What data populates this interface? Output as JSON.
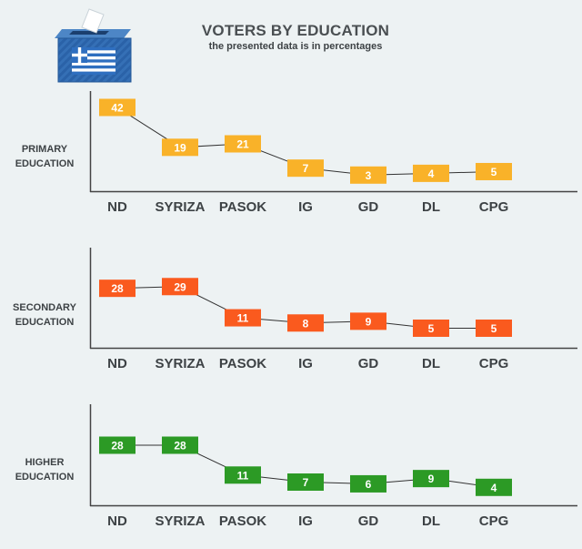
{
  "header": {
    "title": "VOTERS BY EDUCATION",
    "subtitle": "the presented data is in percentages"
  },
  "icon": "greek-ballot-box-icon",
  "chart_data": [
    {
      "type": "line",
      "panel_label": "PRIMARY EDUCATION",
      "categories": [
        "ND",
        "SYRIZA",
        "PASOK",
        "IG",
        "GD",
        "DL",
        "CPG"
      ],
      "values": [
        42,
        19,
        21,
        7,
        3,
        4,
        5
      ],
      "color": "#f9b229"
    },
    {
      "type": "line",
      "panel_label": "SECONDARY EDUCATION",
      "categories": [
        "ND",
        "SYRIZA",
        "PASOK",
        "IG",
        "GD",
        "DL",
        "CPG"
      ],
      "values": [
        28,
        29,
        11,
        8,
        9,
        5,
        5
      ],
      "color": "#fa5a1e"
    },
    {
      "type": "line",
      "panel_label": "HIGHER EDUCATION",
      "categories": [
        "ND",
        "SYRIZA",
        "PASOK",
        "IG",
        "GD",
        "DL",
        "CPG"
      ],
      "values": [
        28,
        28,
        11,
        7,
        6,
        9,
        4
      ],
      "color": "#2c9a25"
    }
  ]
}
